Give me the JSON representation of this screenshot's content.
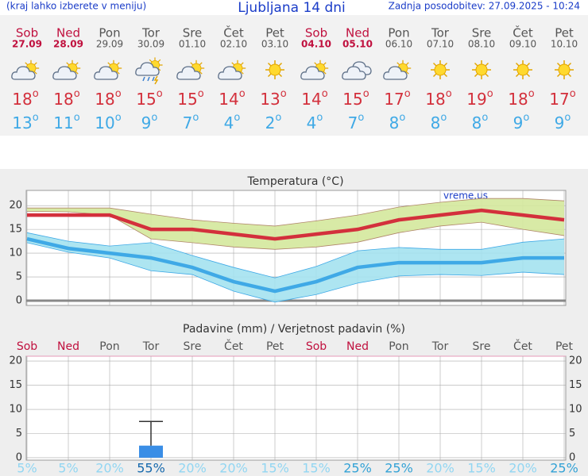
{
  "header": {
    "left": "(kraj lahko izberete v meniju)",
    "title": "Ljubljana 14 dni",
    "updated": "Zadnja posodobitev: 27.09.2025 - 10:24"
  },
  "degree_mark": "o",
  "days": [
    {
      "name": "Sob",
      "date": "27.09",
      "weekend": true
    },
    {
      "name": "Ned",
      "date": "28.09",
      "weekend": true
    },
    {
      "name": "Pon",
      "date": "29.09",
      "weekend": false
    },
    {
      "name": "Tor",
      "date": "30.09",
      "weekend": false
    },
    {
      "name": "Sre",
      "date": "01.10",
      "weekend": false
    },
    {
      "name": "Čet",
      "date": "02.10",
      "weekend": false
    },
    {
      "name": "Pet",
      "date": "03.10",
      "weekend": false
    },
    {
      "name": "Sob",
      "date": "04.10",
      "weekend": true
    },
    {
      "name": "Ned",
      "date": "05.10",
      "weekend": true
    },
    {
      "name": "Pon",
      "date": "06.10",
      "weekend": false
    },
    {
      "name": "Tor",
      "date": "07.10",
      "weekend": false
    },
    {
      "name": "Sre",
      "date": "08.10",
      "weekend": false
    },
    {
      "name": "Čet",
      "date": "09.10",
      "weekend": false
    },
    {
      "name": "Pet",
      "date": "10.10",
      "weekend": false
    }
  ],
  "chart_data": [
    {
      "type": "line",
      "title": "Temperatura (°C)",
      "watermark": "vreme.us",
      "ylim": [
        -1,
        23.2
      ],
      "yticks": [
        0,
        5,
        10,
        15,
        20
      ],
      "grid": true,
      "series": [
        {
          "color": "#d3303c",
          "values": [
            18,
            18,
            18,
            15,
            15,
            14,
            13,
            14,
            15,
            17,
            18,
            19,
            18,
            17
          ]
        },
        {
          "color": "#3fa9e6",
          "values": [
            13,
            11,
            10,
            9,
            7,
            4,
            2,
            4,
            7,
            8,
            8,
            8,
            9,
            9
          ]
        }
      ],
      "bands": [
        {
          "color": "#d4e89c",
          "edge": "#b0866a",
          "upper": [
            19.5,
            19.5,
            19.5,
            18.2,
            17,
            16.3,
            15.7,
            16.8,
            18,
            19.7,
            20.7,
            21.5,
            21.5,
            21
          ],
          "lower": [
            18.8,
            18.7,
            18,
            13,
            12.2,
            11.3,
            10.8,
            11.3,
            12.3,
            14.3,
            15.7,
            16.5,
            15,
            13.7
          ]
        },
        {
          "color": "#a4e2f0",
          "edge": "#3fa9e6",
          "upper": [
            14.3,
            12.5,
            11.5,
            12.2,
            9.5,
            7,
            4.8,
            7.2,
            10.5,
            11.2,
            10.8,
            10.8,
            12.3,
            13
          ],
          "lower": [
            12.2,
            10.2,
            9,
            6.3,
            5.5,
            2,
            -0.3,
            1.3,
            3.7,
            5.2,
            5.5,
            5.3,
            6,
            5.5
          ]
        }
      ]
    },
    {
      "type": "bar",
      "title": "Padavine (mm) / Verjetnost padavin (%)",
      "color": "#3a8ee6",
      "ylim": [
        -0.5,
        21
      ],
      "yticks": [
        0,
        5,
        10,
        15,
        20
      ],
      "y2lim": [
        -0.5,
        21
      ],
      "y2ticks": [
        0,
        5,
        10,
        15,
        20
      ],
      "grid": true,
      "values": [
        0,
        0,
        0,
        2.5,
        0,
        0,
        0,
        0,
        0,
        0,
        0,
        0,
        0,
        0
      ],
      "errors": [
        null,
        null,
        null,
        5,
        null,
        null,
        null,
        null,
        null,
        null,
        null,
        null,
        null,
        null
      ],
      "probability": {
        "values": [
          5,
          5,
          20,
          55,
          20,
          20,
          15,
          15,
          25,
          25,
          20,
          15,
          20,
          25
        ],
        "value_labels": [
          "5%",
          "5%",
          "20%",
          "55%",
          "20%",
          "20%",
          "15%",
          "15%",
          "25%",
          "25%",
          "20%",
          "15%",
          "20%",
          "25%"
        ]
      }
    }
  ]
}
